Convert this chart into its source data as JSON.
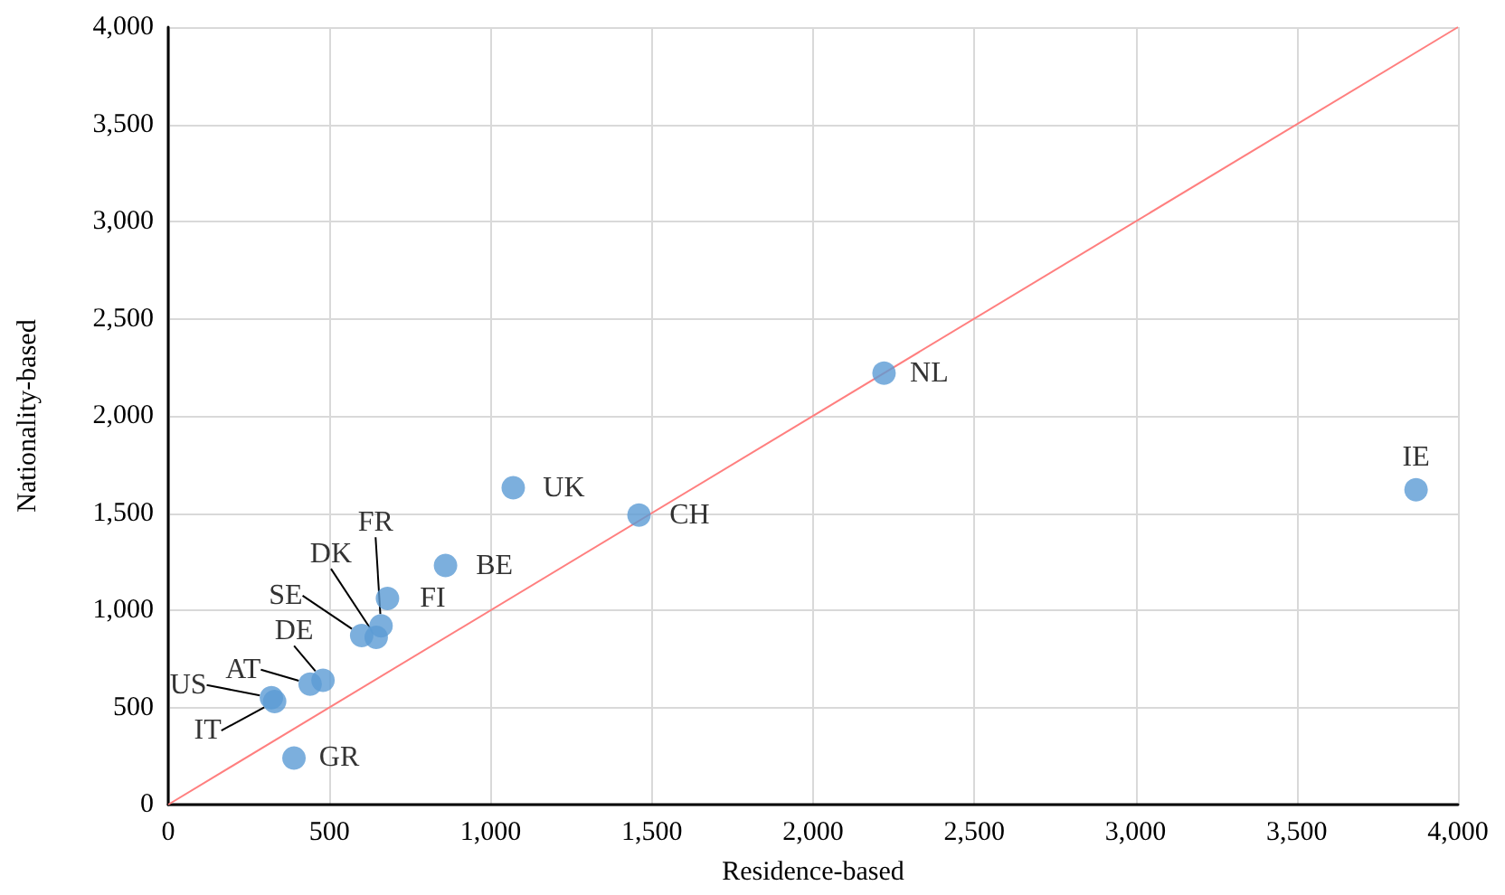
{
  "chart_data": {
    "type": "scatter",
    "xlabel": "Residence-based",
    "ylabel": "Nationality-based",
    "xlim": [
      0,
      4000
    ],
    "ylim": [
      0,
      4000
    ],
    "xticks": [
      0,
      500,
      {
        "value": 1000,
        "label": "1,000"
      },
      {
        "value": 1500,
        "label": "1,500"
      },
      {
        "value": 2000,
        "label": "2,000"
      },
      {
        "value": 2500,
        "label": "2,500"
      },
      {
        "value": 3000,
        "label": "3,000"
      },
      {
        "value": 3500,
        "label": "3,500"
      },
      {
        "value": 4000,
        "label": "4,000"
      }
    ],
    "yticks": [
      0,
      500,
      {
        "value": 1000,
        "label": "1,000"
      },
      {
        "value": 1500,
        "label": "1,500"
      },
      {
        "value": 2000,
        "label": "2,000"
      },
      {
        "value": 2500,
        "label": "2,500"
      },
      {
        "value": 3000,
        "label": "3,000"
      },
      {
        "value": 3500,
        "label": "3,500"
      },
      {
        "value": 4000,
        "label": "4,000"
      }
    ],
    "grid": true,
    "marker": "circle",
    "series": [
      {
        "color": "#5b9bd5",
        "x": [
          3870,
          2220,
          1460,
          1070,
          860,
          680,
          660,
          645,
          600,
          480,
          440,
          320,
          330,
          390
        ],
        "values": [
          1620,
          2220,
          1490,
          1630,
          1230,
          1060,
          920,
          860,
          870,
          640,
          620,
          550,
          530,
          240
        ]
      },
      {
        "type": "line",
        "marker": "none",
        "color": "#ff7f7f",
        "x": [
          0,
          4000
        ],
        "values": [
          0,
          4000
        ]
      }
    ],
    "annotations": [
      {
        "text": "IE",
        "x": 3870,
        "y": 1620
      },
      {
        "text": "NL",
        "x": 2220,
        "y": 2220
      },
      {
        "text": "CH",
        "x": 1460,
        "y": 1490
      },
      {
        "text": "UK",
        "x": 1070,
        "y": 1630
      },
      {
        "text": "BE",
        "x": 860,
        "y": 1230
      },
      {
        "text": "FI",
        "x": 680,
        "y": 1060
      },
      {
        "text": "FR",
        "x": 660,
        "y": 920
      },
      {
        "text": "DK",
        "x": 645,
        "y": 860
      },
      {
        "text": "SE",
        "x": 600,
        "y": 870
      },
      {
        "text": "DE",
        "x": 480,
        "y": 640
      },
      {
        "text": "AT",
        "x": 440,
        "y": 620
      },
      {
        "text": "US",
        "x": 320,
        "y": 550
      },
      {
        "text": "IT",
        "x": 330,
        "y": 530
      },
      {
        "text": "GR",
        "x": 390,
        "y": 240
      }
    ]
  }
}
